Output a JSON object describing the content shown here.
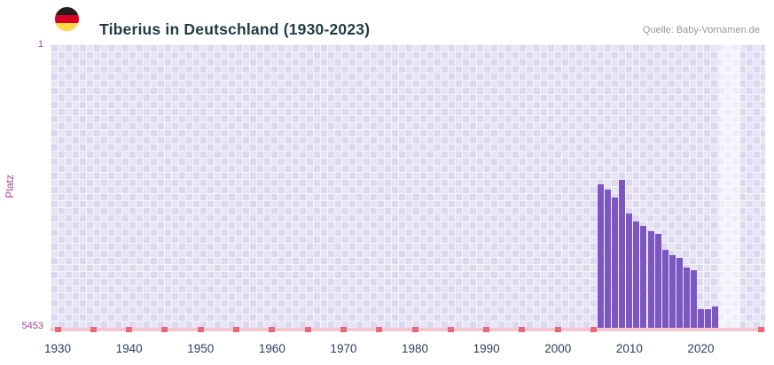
{
  "header": {
    "title": "Tiberius in Deutschland (1930-2023)",
    "source": "Quelle: Baby-Vornamen.de",
    "flag_icon": "german-flag-icon"
  },
  "colors": {
    "bar": "#7d57c1",
    "grid_background": "#dcd8f0",
    "axis_line": "#f6c5cf",
    "axis_marks": "#e4697b",
    "y_labels": "#a6499d",
    "x_labels": "#2f3e5c",
    "title": "#1f3c44",
    "source": "#979797"
  },
  "chart_data": {
    "type": "bar",
    "title": "Tiberius in Deutschland (1930-2023)",
    "xlabel": "",
    "ylabel": "Platz",
    "grid": true,
    "legend": false,
    "y_axis": {
      "top_label": "1",
      "bottom_label": "5453",
      "min": 1,
      "max": 5453,
      "inverted": true
    },
    "x_domain": [
      1929,
      2029
    ],
    "x_ticks": [
      1930,
      1940,
      1950,
      1960,
      1970,
      1980,
      1990,
      2000,
      2010,
      2020
    ],
    "red_tick_years": [
      1930,
      1935,
      1940,
      1945,
      1950,
      1955,
      1960,
      1965,
      1970,
      1975,
      1980,
      1985,
      1990,
      1995,
      2000,
      2005,
      2028.5
    ],
    "highlight_band": {
      "start_year": 2022.5,
      "end_year": 2025.5
    },
    "series": [
      {
        "name": "Platz",
        "color": "#7d57c1",
        "points": [
          {
            "year": 2006,
            "rank": 2700
          },
          {
            "year": 2007,
            "rank": 2800
          },
          {
            "year": 2008,
            "rank": 2950
          },
          {
            "year": 2009,
            "rank": 2600
          },
          {
            "year": 2010,
            "rank": 3250
          },
          {
            "year": 2011,
            "rank": 3400
          },
          {
            "year": 2012,
            "rank": 3500
          },
          {
            "year": 2013,
            "rank": 3600
          },
          {
            "year": 2014,
            "rank": 3650
          },
          {
            "year": 2015,
            "rank": 3950
          },
          {
            "year": 2016,
            "rank": 4050
          },
          {
            "year": 2017,
            "rank": 4100
          },
          {
            "year": 2018,
            "rank": 4300
          },
          {
            "year": 2019,
            "rank": 4350
          },
          {
            "year": 2020,
            "rank": 5100
          },
          {
            "year": 2021,
            "rank": 5100
          },
          {
            "year": 2022,
            "rank": 5050
          }
        ]
      }
    ]
  }
}
